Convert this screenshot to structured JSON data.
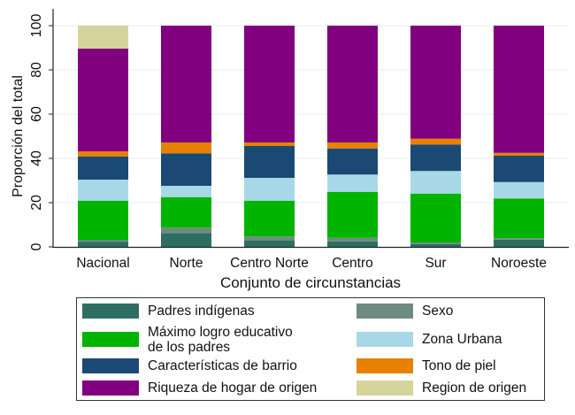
{
  "chart_data": {
    "type": "bar",
    "stacked": true,
    "title": "",
    "xlabel": "Conjunto de circunstancias",
    "ylabel": "Proporción del total",
    "ylim": [
      0,
      100
    ],
    "yticks": [
      0,
      20,
      40,
      60,
      80,
      100
    ],
    "grid": true,
    "categories": [
      "Nacional",
      "Norte",
      "Centro Norte",
      "Centro",
      "Sur",
      "Noroeste"
    ],
    "series": [
      {
        "name": "Padres indígenas",
        "color": "#2d6e62",
        "values": [
          2.2,
          6.3,
          2.8,
          2.5,
          1.3,
          3.3
        ]
      },
      {
        "name": "Sexo",
        "color": "#6e8b80",
        "values": [
          1.0,
          2.4,
          1.9,
          1.6,
          0.7,
          0.6
        ]
      },
      {
        "name": "Máximo logro educativo de los padres",
        "color": "#00b400",
        "values": [
          17.7,
          13.8,
          16.2,
          20.8,
          22.1,
          18.0
        ]
      },
      {
        "name": "Zona Urbana",
        "color": "#a8d8e8",
        "values": [
          9.5,
          5.1,
          10.3,
          7.8,
          10.2,
          7.4
        ]
      },
      {
        "name": "Características de barrio",
        "color": "#1a4a73",
        "values": [
          10.5,
          14.7,
          14.4,
          11.8,
          12.0,
          11.9
        ]
      },
      {
        "name": "Tono de piel",
        "color": "#e88000",
        "values": [
          2.3,
          4.9,
          1.6,
          2.7,
          2.6,
          1.3
        ]
      },
      {
        "name": "Riqueza de hogar de origen",
        "color": "#800080",
        "values": [
          46.4,
          52.8,
          52.8,
          52.8,
          51.1,
          57.5
        ]
      },
      {
        "name": "Region de origen",
        "color": "#d6d39c",
        "values": [
          10.4,
          0,
          0,
          0,
          0,
          0
        ]
      }
    ],
    "legend": {
      "placement": "bottom",
      "columns": 2,
      "items": [
        {
          "label_lines": [
            "Padres indígenas"
          ],
          "color": "#2d6e62"
        },
        {
          "label_lines": [
            "Sexo"
          ],
          "color": "#6e8b80"
        },
        {
          "label_lines": [
            "Máximo logro educativo",
            "de los padres"
          ],
          "color": "#00b400"
        },
        {
          "label_lines": [
            "Zona Urbana"
          ],
          "color": "#a8d8e8"
        },
        {
          "label_lines": [
            "Características de barrio"
          ],
          "color": "#1a4a73"
        },
        {
          "label_lines": [
            "Tono de piel"
          ],
          "color": "#e88000"
        },
        {
          "label_lines": [
            "Riqueza de hogar de origen"
          ],
          "color": "#800080"
        },
        {
          "label_lines": [
            "Region de origen"
          ],
          "color": "#d6d39c"
        }
      ]
    }
  }
}
